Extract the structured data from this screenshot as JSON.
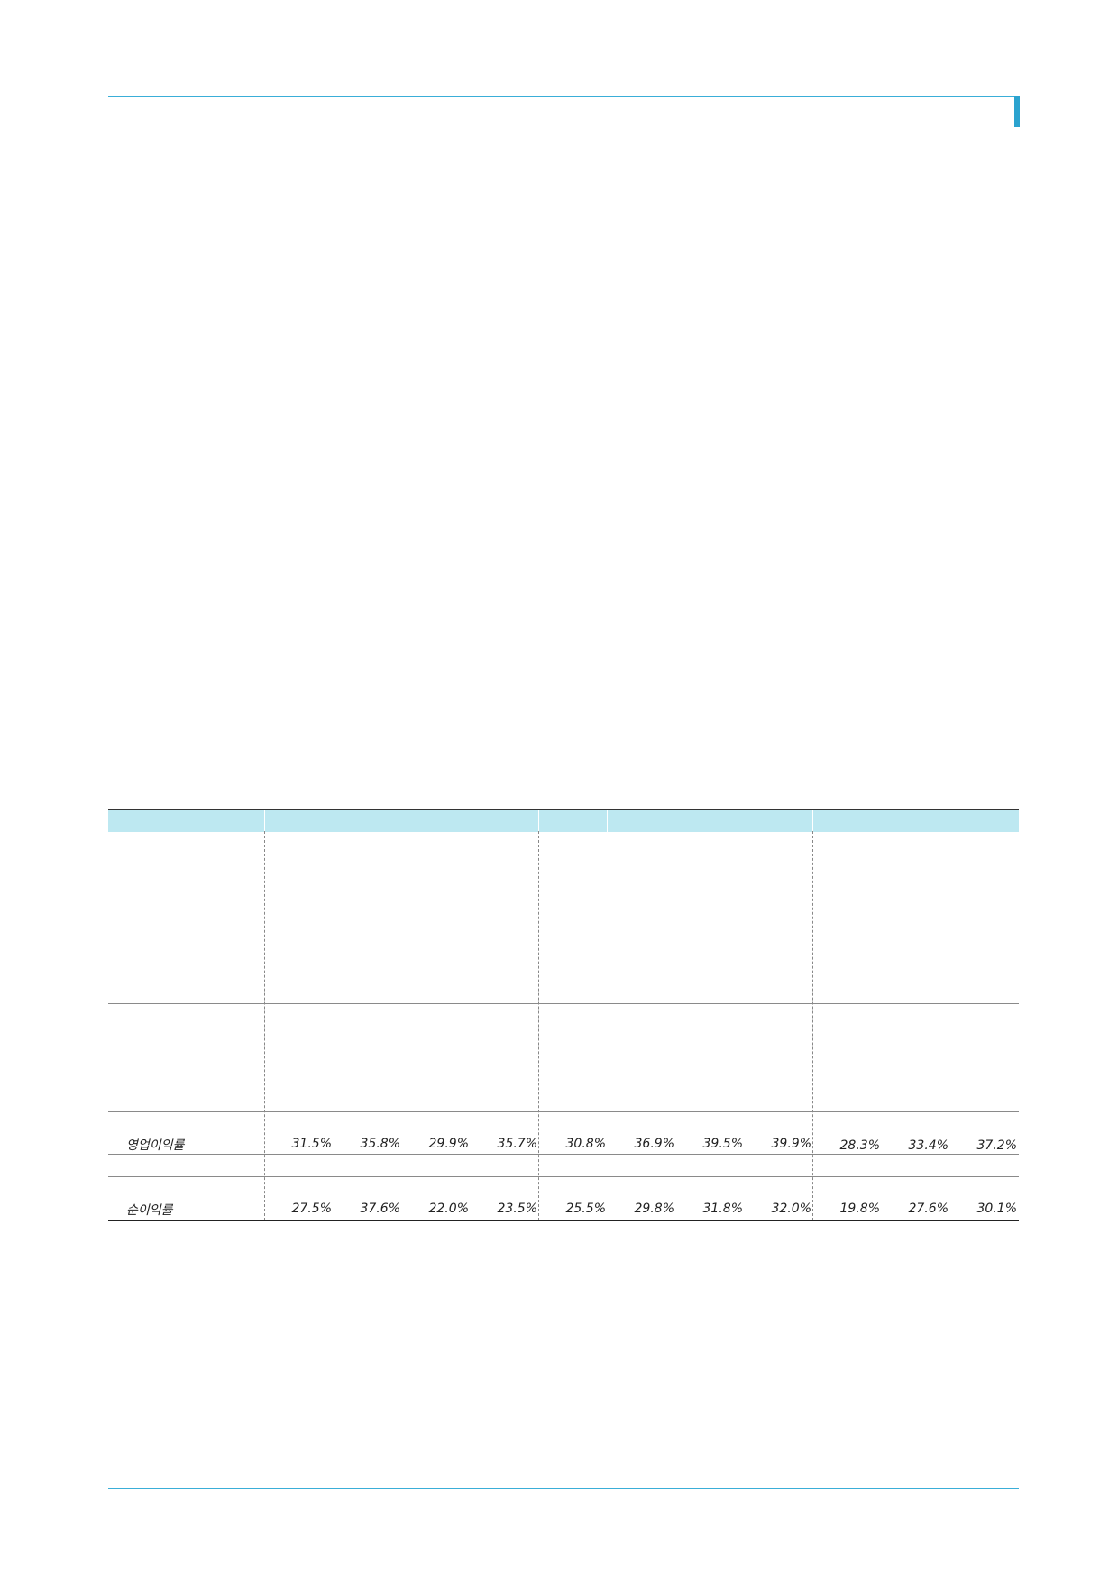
{
  "table": {
    "rows": [
      {
        "label": "영업이익률",
        "values": [
          "31.5%",
          "35.8%",
          "29.9%",
          "35.7%",
          "30.8%",
          "36.9%",
          "39.5%",
          "39.9%",
          "28.3%",
          "33.4%",
          "37.2%"
        ]
      },
      {
        "label": "순이익률",
        "values": [
          "27.5%",
          "37.6%",
          "22.0%",
          "23.5%",
          "25.5%",
          "29.8%",
          "31.8%",
          "32.0%",
          "19.8%",
          "27.6%",
          "30.1%"
        ]
      }
    ]
  },
  "colors": {
    "accent_rule": "#3aaed8",
    "header_band": "#bde8f1"
  }
}
